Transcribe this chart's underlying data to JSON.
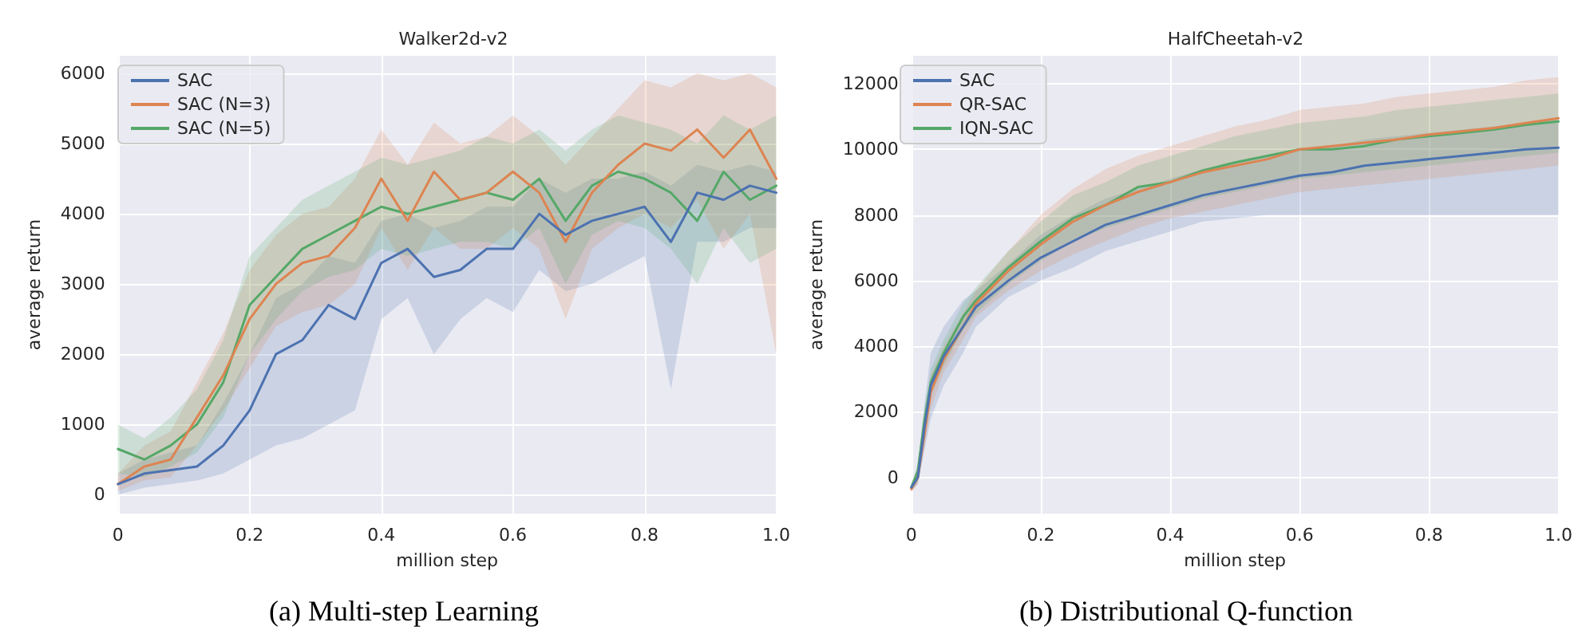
{
  "chart_data": [
    {
      "type": "line",
      "title": "Walker2d-v2",
      "xlabel": "million step",
      "ylabel": "average return",
      "x": [
        0,
        0.04,
        0.08,
        0.12,
        0.16,
        0.2,
        0.24,
        0.28,
        0.32,
        0.36,
        0.4,
        0.44,
        0.48,
        0.52,
        0.56,
        0.6,
        0.64,
        0.68,
        0.72,
        0.76,
        0.8,
        0.84,
        0.88,
        0.92,
        0.96,
        1
      ],
      "series": [
        {
          "name": "SAC",
          "color": "#4c72b0",
          "values": [
            150,
            300,
            350,
            400,
            700,
            1200,
            2000,
            2200,
            2700,
            2500,
            3300,
            3500,
            3100,
            3200,
            3500,
            3500,
            4000,
            3700,
            3900,
            4000,
            4100,
            3600,
            4300,
            4200,
            4400,
            4300
          ],
          "lower": [
            0,
            100,
            150,
            200,
            300,
            500,
            700,
            800,
            1000,
            1200,
            2500,
            2800,
            2000,
            2500,
            2800,
            2600,
            3200,
            2900,
            3000,
            3200,
            3400,
            1500,
            3600,
            3600,
            3800,
            3800
          ],
          "upper": [
            300,
            500,
            600,
            700,
            1300,
            2000,
            2800,
            3000,
            3400,
            3300,
            3900,
            4000,
            3800,
            3900,
            4100,
            4100,
            4500,
            4300,
            4500,
            4500,
            4600,
            4400,
            4700,
            4600,
            4700,
            4600
          ]
        },
        {
          "name": "SAC (N=3)",
          "color": "#dd8452",
          "values": [
            150,
            400,
            500,
            1100,
            1700,
            2500,
            3000,
            3300,
            3400,
            3800,
            4500,
            3900,
            4600,
            4200,
            4300,
            4600,
            4300,
            3600,
            4300,
            4700,
            5000,
            4900,
            5200,
            4800,
            5200,
            4500
          ],
          "lower": [
            50,
            200,
            250,
            700,
            1200,
            1800,
            2400,
            2600,
            2700,
            3000,
            3800,
            3200,
            3800,
            3500,
            3500,
            3800,
            3500,
            2500,
            3500,
            3800,
            4000,
            3800,
            4200,
            3500,
            4000,
            2000
          ],
          "upper": [
            300,
            700,
            900,
            1600,
            2300,
            3200,
            3700,
            4000,
            4100,
            4500,
            5200,
            4700,
            5300,
            5000,
            5100,
            5400,
            5100,
            4700,
            5100,
            5500,
            5900,
            5800,
            6000,
            5900,
            6000,
            5800
          ]
        },
        {
          "name": "SAC (N=5)",
          "color": "#55a868",
          "values": [
            650,
            500,
            700,
            1000,
            1600,
            2700,
            3100,
            3500,
            3700,
            3900,
            4100,
            4000,
            4100,
            4200,
            4300,
            4200,
            4500,
            3900,
            4400,
            4600,
            4500,
            4300,
            3900,
            4600,
            4200,
            4400
          ],
          "lower": [
            300,
            250,
            400,
            600,
            1100,
            2000,
            2500,
            2900,
            3100,
            3200,
            3500,
            3400,
            3500,
            3600,
            3600,
            3500,
            3800,
            3000,
            3700,
            3900,
            3800,
            3500,
            3000,
            3800,
            3300,
            3500
          ],
          "upper": [
            1000,
            800,
            1100,
            1500,
            2200,
            3400,
            3800,
            4200,
            4400,
            4600,
            4800,
            4700,
            4800,
            4900,
            5100,
            5000,
            5200,
            4900,
            5200,
            5400,
            5300,
            5200,
            5000,
            5400,
            5200,
            5400
          ]
        }
      ],
      "xlim": [
        0,
        1
      ],
      "xticks": [
        0,
        0.2,
        0.4,
        0.6,
        0.8,
        {
          "value": 1,
          "label": "1.0"
        }
      ],
      "ylim": [
        -270,
        6250
      ],
      "yticks": [
        0,
        1000,
        2000,
        3000,
        4000,
        5000,
        6000
      ],
      "grid": true,
      "legend": "top left",
      "marker": "none",
      "annotations": [
        "(a) Multi-step Learning"
      ]
    },
    {
      "type": "line",
      "title": "HalfCheetah-v2",
      "xlabel": "million step",
      "ylabel": "average return",
      "x": [
        0,
        0.01,
        0.02,
        0.03,
        0.05,
        0.08,
        0.1,
        0.15,
        0.2,
        0.25,
        0.3,
        0.35,
        0.4,
        0.45,
        0.5,
        0.55,
        0.6,
        0.65,
        0.7,
        0.75,
        0.8,
        0.85,
        0.9,
        0.95,
        1
      ],
      "series": [
        {
          "name": "SAC",
          "color": "#4c72b0",
          "values": [
            -300,
            0,
            1500,
            2800,
            3700,
            4600,
            5200,
            6000,
            6700,
            7200,
            7700,
            8000,
            8300,
            8600,
            8800,
            9000,
            9200,
            9300,
            9500,
            9600,
            9700,
            9800,
            9900,
            10000,
            10050
          ],
          "lower": [
            -400,
            -200,
            800,
            1800,
            2800,
            3800,
            4600,
            5500,
            6000,
            6400,
            6900,
            7200,
            7500,
            7800,
            7900,
            8000,
            8000,
            8000,
            8000,
            8000,
            8000,
            8000,
            8000,
            8000,
            8000
          ],
          "upper": [
            -200,
            300,
            2200,
            3800,
            4600,
            5400,
            5700,
            6500,
            7400,
            8000,
            8500,
            8800,
            9100,
            9400,
            9600,
            9800,
            10000,
            10100,
            10300,
            10400,
            10500,
            10600,
            10700,
            10800,
            10900
          ]
        },
        {
          "name": "QR-SAC",
          "color": "#dd8452",
          "values": [
            -350,
            0,
            1300,
            2600,
            3600,
            4600,
            5300,
            6300,
            7100,
            7800,
            8300,
            8700,
            9000,
            9300,
            9500,
            9700,
            10000,
            10100,
            10200,
            10300,
            10450,
            10550,
            10650,
            10800,
            10950
          ],
          "lower": [
            -450,
            -200,
            900,
            2100,
            3200,
            4200,
            4900,
            5700,
            6300,
            6800,
            7200,
            7600,
            7900,
            8100,
            8300,
            8500,
            8700,
            8800,
            8900,
            9000,
            9100,
            9200,
            9300,
            9400,
            9500
          ],
          "upper": [
            -250,
            200,
            1700,
            3100,
            4000,
            5000,
            5700,
            6900,
            8000,
            8800,
            9400,
            9800,
            10100,
            10400,
            10700,
            10900,
            11200,
            11300,
            11400,
            11600,
            11700,
            11800,
            11900,
            12100,
            12200
          ]
        },
        {
          "name": "IQN-SAC",
          "color": "#55a868",
          "values": [
            -300,
            200,
            1700,
            2900,
            3800,
            4900,
            5400,
            6400,
            7200,
            7900,
            8300,
            8850,
            9000,
            9350,
            9600,
            9800,
            10000,
            10000,
            10100,
            10300,
            10400,
            10500,
            10600,
            10750,
            10850
          ],
          "lower": [
            -400,
            0,
            1300,
            2500,
            3400,
            4500,
            5000,
            5900,
            6600,
            7200,
            7600,
            7900,
            8200,
            8500,
            8700,
            8900,
            9100,
            9200,
            9300,
            9400,
            9500,
            9600,
            9700,
            9800,
            9900
          ],
          "upper": [
            -200,
            400,
            2100,
            3300,
            4200,
            5300,
            5800,
            6900,
            7800,
            8600,
            9000,
            9500,
            9800,
            10100,
            10400,
            10600,
            10800,
            10900,
            11000,
            11200,
            11300,
            11400,
            11500,
            11600,
            11700
          ]
        }
      ],
      "xlim": [
        0,
        1
      ],
      "xticks": [
        0,
        0.2,
        0.4,
        0.6,
        0.8,
        {
          "value": 1,
          "label": "1.0"
        }
      ],
      "ylim": [
        -1100,
        12850
      ],
      "yticks": [
        0,
        2000,
        4000,
        6000,
        8000,
        10000,
        12000
      ],
      "grid": true,
      "legend": "top left",
      "marker": "none",
      "annotations": [
        "(b) Distributional Q-function"
      ]
    }
  ]
}
